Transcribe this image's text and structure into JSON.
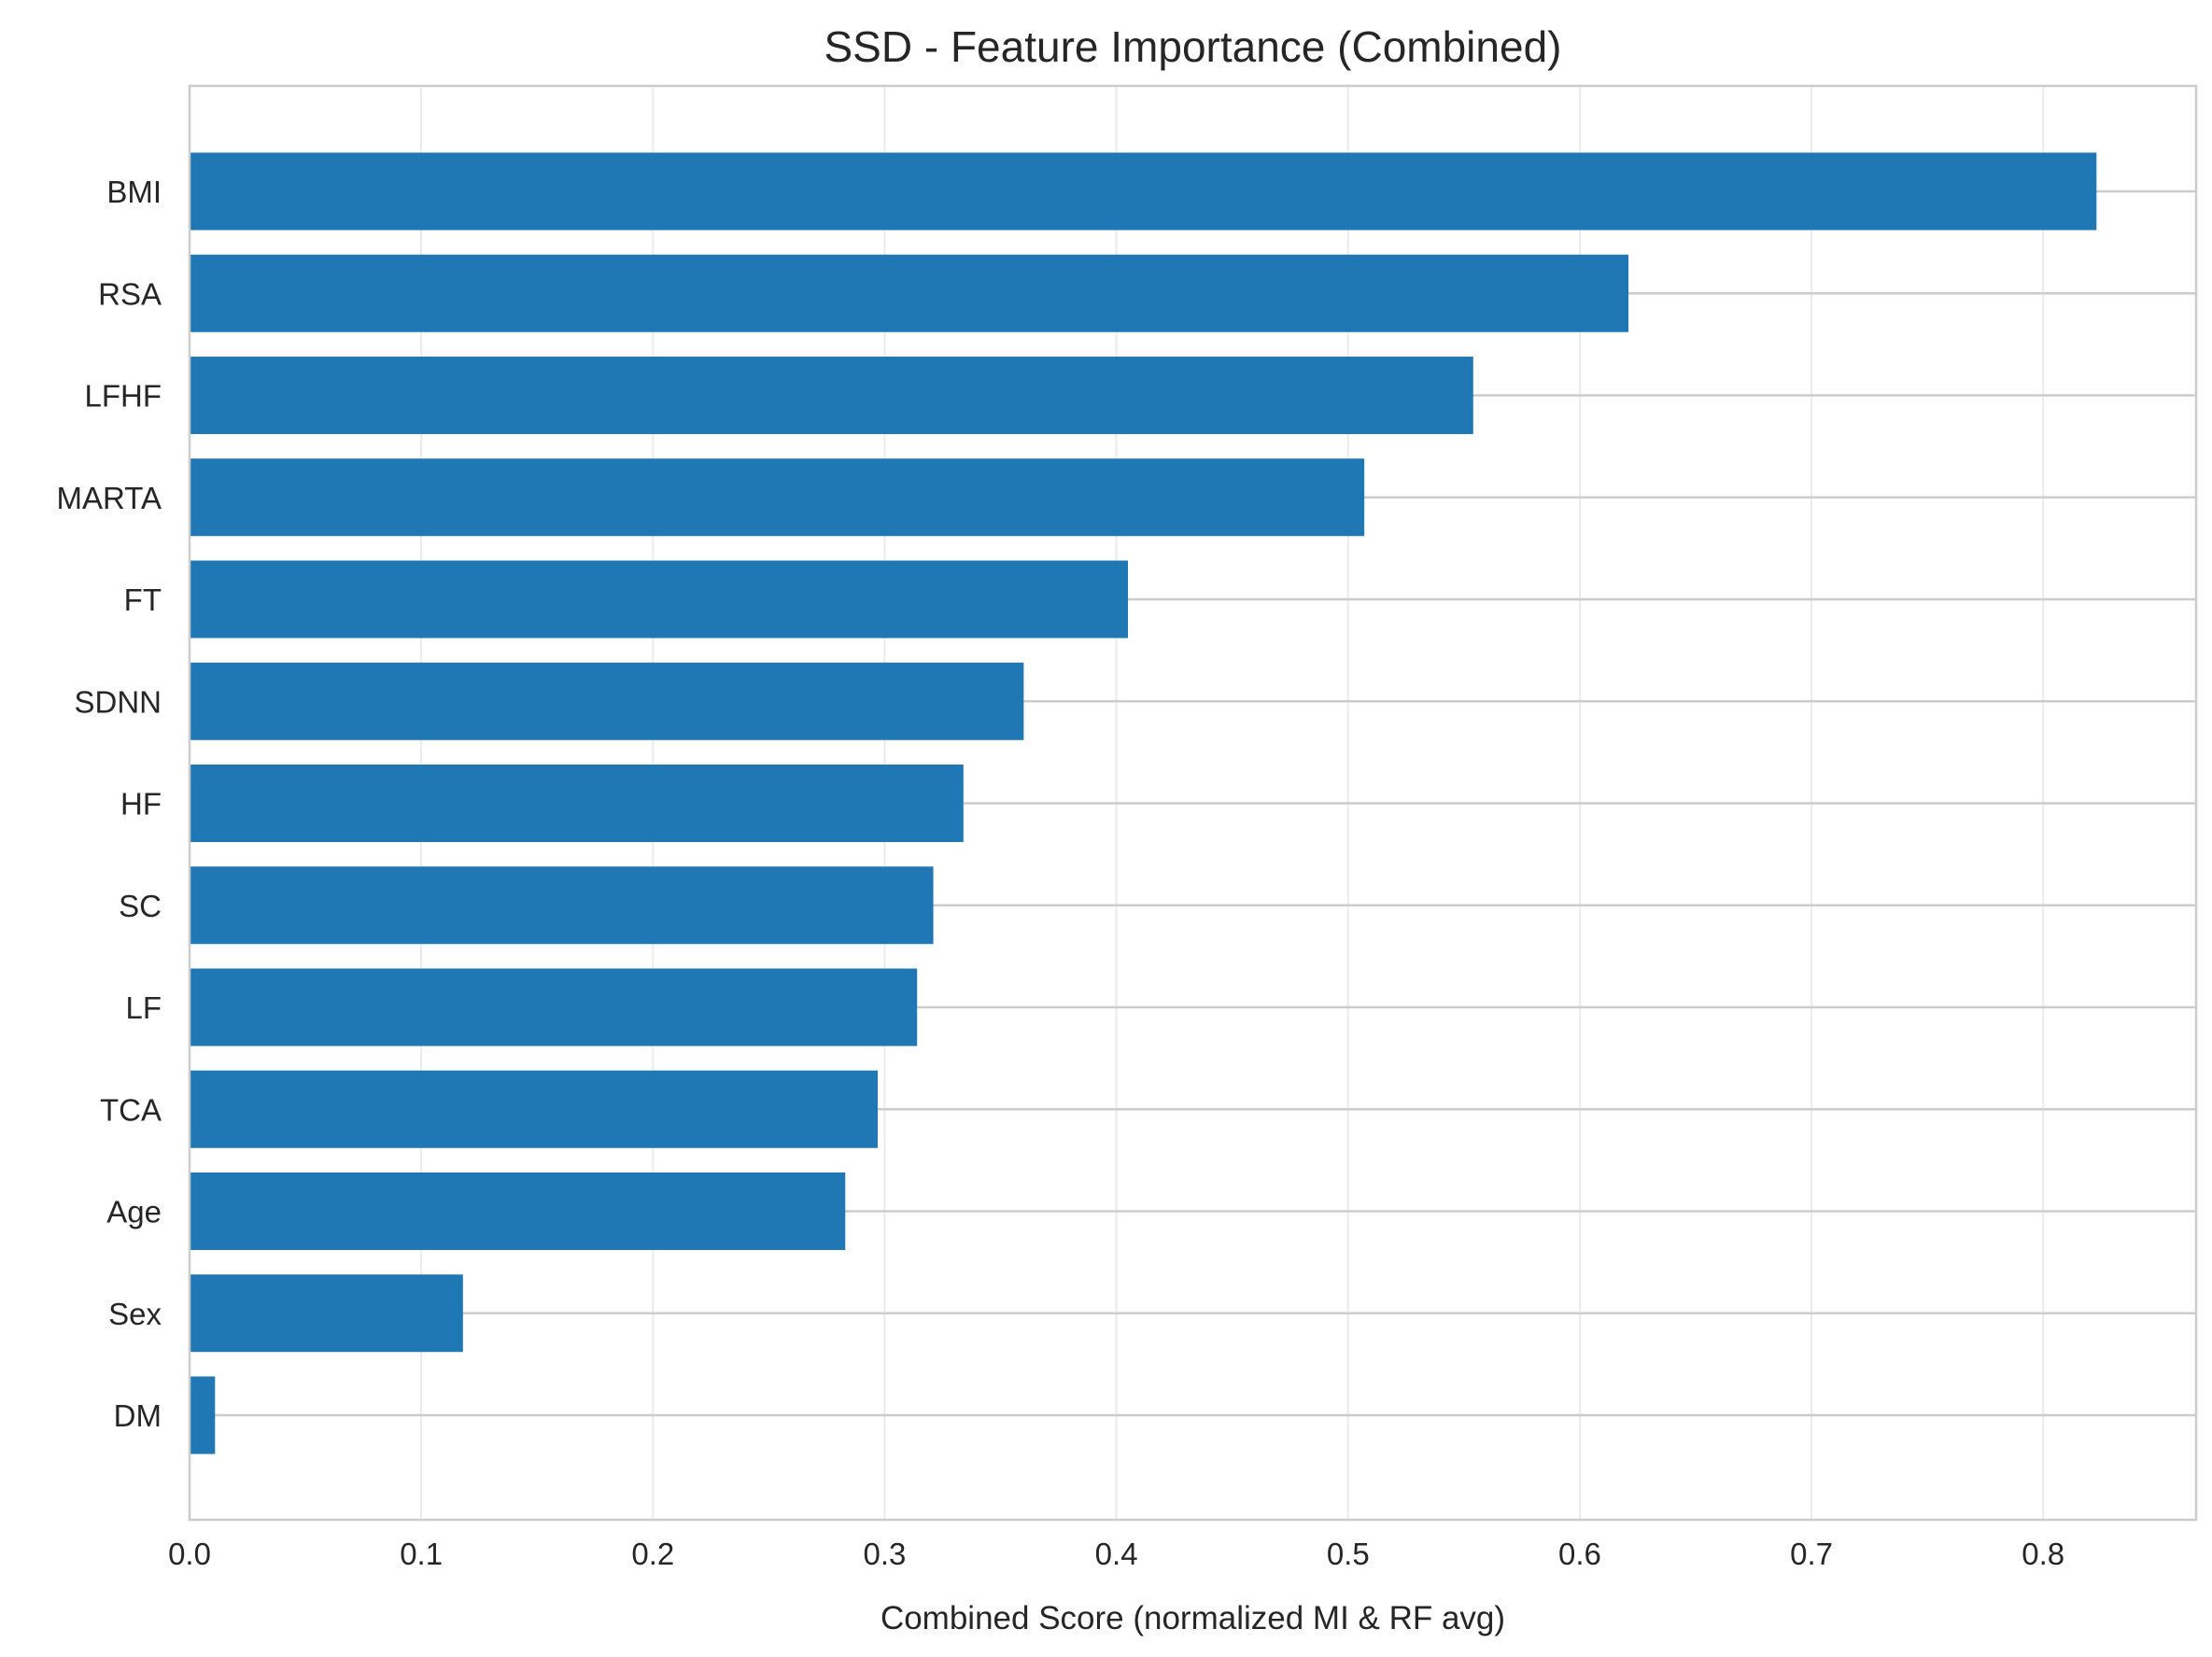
{
  "chart_data": {
    "type": "bar",
    "orientation": "horizontal",
    "title": "SSD - Feature Importance (Combined)",
    "xlabel": "Combined Score (normalized MI & RF avg)",
    "ylabel": "",
    "categories": [
      "BMI",
      "RSA",
      "LFHF",
      "MARTA",
      "FT",
      "SDNN",
      "HF",
      "SC",
      "LF",
      "TCA",
      "Age",
      "Sex",
      "DM"
    ],
    "values": [
      0.823,
      0.621,
      0.554,
      0.507,
      0.405,
      0.36,
      0.334,
      0.321,
      0.314,
      0.297,
      0.283,
      0.118,
      0.011
    ],
    "xlim": [
      0,
      0.866
    ],
    "xticks": [
      "0.0",
      "0.1",
      "0.2",
      "0.3",
      "0.4",
      "0.5",
      "0.6",
      "0.7",
      "0.8"
    ],
    "grid": true,
    "bar_color": "#1f77b4",
    "grid_color": "#ebebeb"
  }
}
